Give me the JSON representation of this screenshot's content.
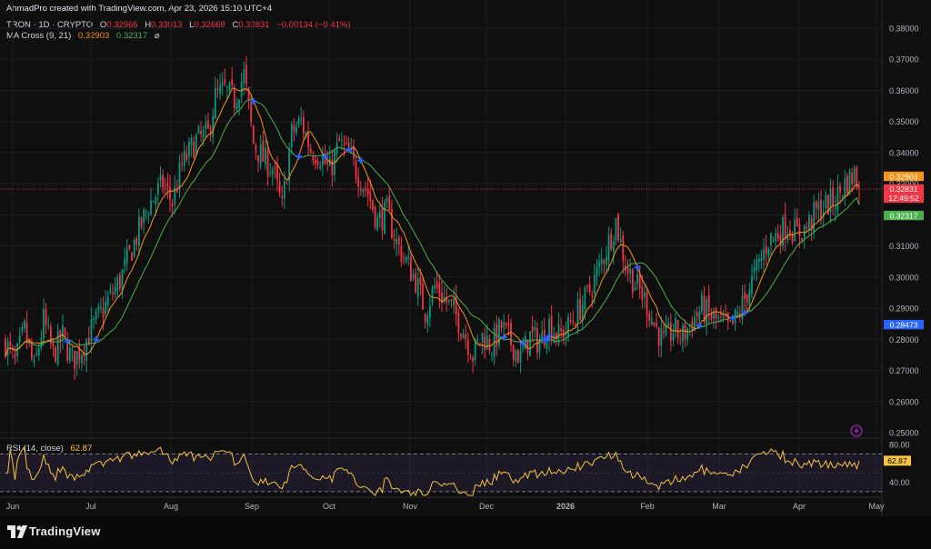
{
  "header": {
    "credit": "AhmadPro created with TradingView.com, Apr 23, 2026 15:10 UTC+4",
    "symbol": "TRON · 1D · CRYPTO",
    "o_label": "O",
    "o_value": "0.32965",
    "h_label": "H",
    "h_value": "0.33013",
    "l_label": "L",
    "l_value": "0.32668",
    "c_label": "C",
    "c_value": "0.32831",
    "change": "−0.00134 (−0.41%)",
    "ma_label": "MA Cross (9, 21)",
    "ma_fast": "0.32903",
    "ma_slow": "0.32317",
    "ma_icon": "⌀"
  },
  "rsi": {
    "label": "RSI (14, close)",
    "value": "62.87"
  },
  "footer": {
    "brand": "TradingView"
  },
  "colors": {
    "background": "#0f0f0f",
    "up": "#089981",
    "down": "#f23645",
    "fast_ma": "#f7931a",
    "slow_ma": "#4caf50",
    "rsi": "#f6c343",
    "cross": "#2962ff"
  },
  "chart_data": [
    {
      "type": "candlestick",
      "ylim": [
        0.245,
        0.383
      ],
      "yticks": [
        "0.38000",
        "0.37000",
        "0.36000",
        "0.35000",
        "0.34000",
        "0.33000",
        "0.32000",
        "0.31000",
        "0.30000",
        "0.29000",
        "0.28000",
        "0.27000",
        "0.26000",
        "0.25000"
      ],
      "xticks": [
        "Jun",
        "Jul",
        "Aug",
        "Sep",
        "Oct",
        "Nov",
        "Dec",
        "2026",
        "Feb",
        "Mar",
        "Apr",
        "May"
      ],
      "price_labels": [
        {
          "text": "0.32903",
          "value": 0.32903,
          "color": "#f7931a"
        },
        {
          "text": "0.32831",
          "value": 0.32831,
          "color": "#f23645"
        },
        {
          "text": "12:49:52",
          "value": 0.32831,
          "color": "#f23645"
        },
        {
          "text": "0.32317",
          "value": 0.32317,
          "color": "#4caf50"
        },
        {
          "text": "0.28473",
          "value": 0.28473,
          "color": "#2962ff"
        }
      ],
      "last_price": 0.32831,
      "series": [
        {
          "name": "MA Cross (9, 21)",
          "fast": 0.32903,
          "slow": 0.32317
        },
        {
          "name": "TRON · 1D · CRYPTO",
          "anchors": [
            [
              0,
              0.279
            ],
            [
              4,
              0.272
            ],
            [
              8,
              0.283
            ],
            [
              12,
              0.27
            ],
            [
              16,
              0.286
            ],
            [
              20,
              0.275
            ],
            [
              24,
              0.281
            ],
            [
              28,
              0.273
            ],
            [
              32,
              0.277
            ],
            [
              36,
              0.283
            ],
            [
              42,
              0.291
            ],
            [
              48,
              0.299
            ],
            [
              54,
              0.311
            ],
            [
              60,
              0.323
            ],
            [
              66,
              0.33
            ],
            [
              70,
              0.324
            ],
            [
              74,
              0.336
            ],
            [
              80,
              0.344
            ],
            [
              85,
              0.346
            ],
            [
              88,
              0.358
            ],
            [
              92,
              0.36
            ],
            [
              96,
              0.357
            ],
            [
              100,
              0.365
            ],
            [
              104,
              0.343
            ],
            [
              108,
              0.338
            ],
            [
              112,
              0.335
            ],
            [
              116,
              0.322
            ],
            [
              120,
              0.346
            ],
            [
              124,
              0.35
            ],
            [
              128,
              0.341
            ],
            [
              132,
              0.339
            ],
            [
              136,
              0.334
            ],
            [
              140,
              0.343
            ],
            [
              144,
              0.339
            ],
            [
              148,
              0.333
            ],
            [
              152,
              0.327
            ],
            [
              156,
              0.318
            ],
            [
              160,
              0.321
            ],
            [
              164,
              0.311
            ],
            [
              168,
              0.305
            ],
            [
              172,
              0.299
            ],
            [
              176,
              0.289
            ],
            [
              180,
              0.297
            ],
            [
              184,
              0.293
            ],
            [
              188,
              0.289
            ],
            [
              192,
              0.283
            ],
            [
              196,
              0.275
            ],
            [
              200,
              0.281
            ],
            [
              204,
              0.278
            ],
            [
              208,
              0.284
            ],
            [
              212,
              0.279
            ],
            [
              216,
              0.274
            ],
            [
              220,
              0.281
            ],
            [
              224,
              0.279
            ],
            [
              228,
              0.285
            ],
            [
              232,
              0.281
            ],
            [
              236,
              0.284
            ],
            [
              240,
              0.289
            ],
            [
              244,
              0.294
            ],
            [
              248,
              0.301
            ],
            [
              252,
              0.309
            ],
            [
              256,
              0.318
            ],
            [
              260,
              0.304
            ],
            [
              264,
              0.298
            ],
            [
              268,
              0.293
            ],
            [
              272,
              0.285
            ],
            [
              276,
              0.279
            ],
            [
              280,
              0.283
            ],
            [
              284,
              0.281
            ],
            [
              288,
              0.286
            ],
            [
              292,
              0.29
            ],
            [
              296,
              0.287
            ],
            [
              300,
              0.285
            ],
            [
              304,
              0.283
            ],
            [
              308,
              0.289
            ],
            [
              312,
              0.297
            ],
            [
              316,
              0.304
            ],
            [
              320,
              0.312
            ],
            [
              324,
              0.314
            ],
            [
              328,
              0.317
            ],
            [
              332,
              0.314
            ],
            [
              336,
              0.316
            ],
            [
              340,
              0.321
            ],
            [
              344,
              0.323
            ],
            [
              348,
              0.325
            ],
            [
              352,
              0.33
            ],
            [
              356,
              0.333
            ],
            [
              358,
              0.3283
            ]
          ]
        }
      ]
    },
    {
      "type": "line",
      "series": [
        {
          "name": "RSI (14, close)",
          "last": 62.87
        }
      ],
      "ylim": [
        25,
        85
      ],
      "yticks": [
        "80.00",
        "40.00"
      ],
      "bands": [
        70,
        30
      ],
      "last_label": "62.87"
    }
  ]
}
